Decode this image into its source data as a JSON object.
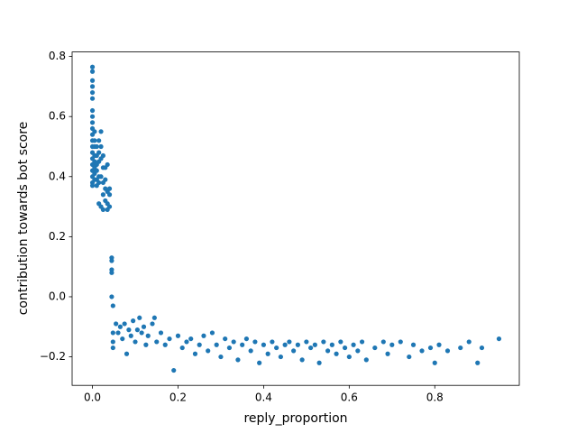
{
  "chart_data": {
    "type": "scatter",
    "xlabel": "reply_proportion",
    "ylabel": "contribution towards bot score",
    "color": "#1f77b4",
    "xlim": [
      -0.0475,
      0.9975
    ],
    "ylim": [
      -0.295,
      0.815
    ],
    "xticks": [
      {
        "value": 0,
        "label": "0.0"
      },
      0.2,
      0.4,
      0.6,
      0.8
    ],
    "yticks": [
      {
        "value": -0.2,
        "label": "−0.2"
      },
      {
        "value": 0,
        "label": "0.0"
      },
      0.2,
      0.4,
      0.6,
      0.8
    ],
    "x": [
      0,
      0,
      0,
      0,
      0,
      0,
      0,
      0,
      0,
      0,
      0,
      0,
      0,
      0,
      0,
      0,
      0,
      0,
      0,
      0,
      0.005,
      0.005,
      0.005,
      0.005,
      0.005,
      0.005,
      0.005,
      0.005,
      0.01,
      0.01,
      0.01,
      0.01,
      0.01,
      0.01,
      0.015,
      0.015,
      0.015,
      0.015,
      0.015,
      0.015,
      0.02,
      0.02,
      0.02,
      0.02,
      0.02,
      0.025,
      0.025,
      0.025,
      0.025,
      0.025,
      0.03,
      0.03,
      0.03,
      0.03,
      0.035,
      0.035,
      0.035,
      0.035,
      0.04,
      0.04,
      0.04,
      0.045,
      0.045,
      0.045,
      0.045,
      0.045,
      0.048,
      0.048,
      0.048,
      0.048,
      0.055,
      0.06,
      0.065,
      0.07,
      0.075,
      0.08,
      0.085,
      0.09,
      0.095,
      0.1,
      0.105,
      0.11,
      0.115,
      0.12,
      0.125,
      0.13,
      0.14,
      0.145,
      0.15,
      0.16,
      0.17,
      0.18,
      0.19,
      0.2,
      0.21,
      0.22,
      0.23,
      0.24,
      0.25,
      0.26,
      0.27,
      0.28,
      0.29,
      0.3,
      0.31,
      0.32,
      0.33,
      0.34,
      0.35,
      0.36,
      0.37,
      0.38,
      0.39,
      0.4,
      0.41,
      0.42,
      0.43,
      0.44,
      0.45,
      0.46,
      0.47,
      0.48,
      0.49,
      0.5,
      0.51,
      0.52,
      0.53,
      0.54,
      0.55,
      0.56,
      0.57,
      0.58,
      0.59,
      0.6,
      0.61,
      0.62,
      0.63,
      0.64,
      0.66,
      0.68,
      0.69,
      0.7,
      0.72,
      0.74,
      0.75,
      0.77,
      0.79,
      0.8,
      0.81,
      0.83,
      0.86,
      0.88,
      0.9,
      0.91,
      0.95
    ],
    "values": [
      0.765,
      0.75,
      0.72,
      0.7,
      0.68,
      0.66,
      0.62,
      0.6,
      0.58,
      0.56,
      0.54,
      0.52,
      0.5,
      0.48,
      0.46,
      0.44,
      0.42,
      0.4,
      0.38,
      0.37,
      0.55,
      0.52,
      0.5,
      0.47,
      0.45,
      0.43,
      0.41,
      0.39,
      0.5,
      0.47,
      0.44,
      0.42,
      0.39,
      0.37,
      0.52,
      0.48,
      0.45,
      0.4,
      0.38,
      0.31,
      0.55,
      0.5,
      0.46,
      0.4,
      0.3,
      0.47,
      0.43,
      0.38,
      0.34,
      0.29,
      0.43,
      0.39,
      0.36,
      0.32,
      0.44,
      0.35,
      0.31,
      0.29,
      0.36,
      0.34,
      0.3,
      0.13,
      0.12,
      0.09,
      0.08,
      0.0,
      -0.03,
      -0.12,
      -0.15,
      -0.17,
      -0.09,
      -0.12,
      -0.1,
      -0.14,
      -0.09,
      -0.19,
      -0.11,
      -0.13,
      -0.08,
      -0.15,
      -0.11,
      -0.07,
      -0.12,
      -0.1,
      -0.16,
      -0.13,
      -0.09,
      -0.07,
      -0.15,
      -0.12,
      -0.16,
      -0.14,
      -0.245,
      -0.13,
      -0.17,
      -0.15,
      -0.14,
      -0.19,
      -0.16,
      -0.13,
      -0.18,
      -0.12,
      -0.16,
      -0.2,
      -0.14,
      -0.17,
      -0.15,
      -0.21,
      -0.16,
      -0.14,
      -0.18,
      -0.15,
      -0.22,
      -0.16,
      -0.19,
      -0.15,
      -0.17,
      -0.2,
      -0.16,
      -0.15,
      -0.18,
      -0.16,
      -0.21,
      -0.15,
      -0.17,
      -0.16,
      -0.22,
      -0.15,
      -0.18,
      -0.16,
      -0.19,
      -0.15,
      -0.17,
      -0.2,
      -0.16,
      -0.18,
      -0.15,
      -0.21,
      -0.17,
      -0.15,
      -0.19,
      -0.16,
      -0.15,
      -0.2,
      -0.16,
      -0.18,
      -0.17,
      -0.22,
      -0.16,
      -0.18,
      -0.17,
      -0.15,
      -0.22,
      -0.17,
      -0.14
    ]
  }
}
